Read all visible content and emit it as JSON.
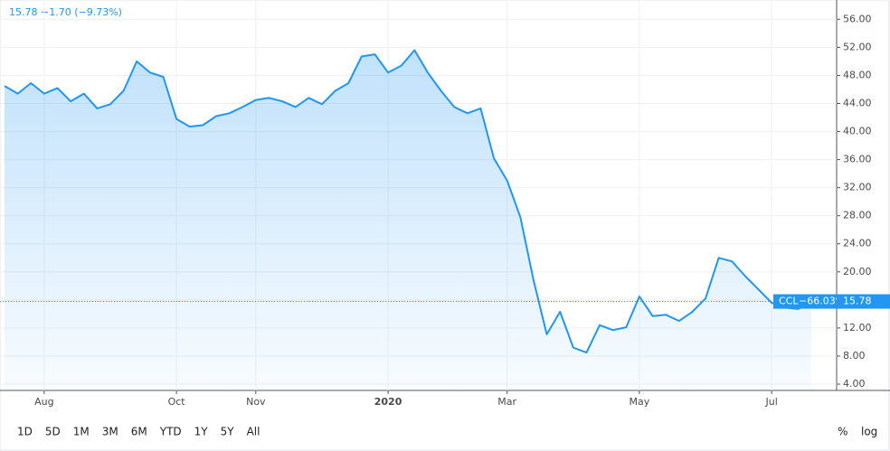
{
  "header": {
    "quote": "15.78 −1.70 (−9.73%)"
  },
  "chart_data": {
    "type": "line",
    "x": [
      null,
      null,
      null,
      "Aug",
      null,
      null,
      null,
      null,
      null,
      null,
      null,
      null,
      null,
      "Oct",
      null,
      null,
      null,
      null,
      null,
      "Nov",
      null,
      null,
      null,
      null,
      null,
      null,
      null,
      null,
      null,
      "2020",
      null,
      null,
      null,
      null,
      null,
      null,
      null,
      null,
      "Mar",
      null,
      null,
      null,
      null,
      null,
      null,
      null,
      null,
      null,
      "May",
      null,
      null,
      null,
      null,
      null,
      null,
      null,
      null,
      null,
      "Jul",
      null,
      null,
      null
    ],
    "series": [
      {
        "name": "CCL",
        "color": "#2196f3",
        "change_label": "−66.03%",
        "values": [
          46.5,
          45.4,
          46.9,
          45.4,
          46.2,
          44.3,
          45.4,
          43.3,
          43.9,
          45.8,
          50.0,
          48.4,
          47.8,
          41.8,
          40.7,
          40.9,
          42.2,
          42.6,
          43.5,
          44.5,
          44.8,
          44.3,
          43.5,
          44.8,
          43.9,
          45.8,
          46.9,
          50.7,
          51.0,
          48.4,
          49.4,
          51.6,
          48.4,
          45.8,
          43.5,
          42.6,
          43.3,
          36.2,
          33.0,
          27.8,
          18.8,
          11.1,
          14.3,
          9.2,
          8.5,
          12.4,
          11.7,
          12.1,
          16.5,
          13.7,
          13.9,
          13.0,
          14.3,
          16.2,
          22.0,
          21.5,
          19.4,
          17.5,
          15.6,
          14.9,
          14.7,
          15.78
        ]
      }
    ],
    "ylim": [
      3.1,
      57.2
    ],
    "yticks": [
      {
        "value": 4,
        "label": "4.00"
      },
      {
        "value": 8,
        "label": "8.00"
      },
      {
        "value": 12,
        "label": "12.00"
      },
      {
        "value": 16,
        "label": "16.00"
      },
      {
        "value": 20,
        "label": "20.00"
      },
      {
        "value": 24,
        "label": "24.00"
      },
      {
        "value": 28,
        "label": "28.00"
      },
      {
        "value": 32,
        "label": "32.00"
      },
      {
        "value": 36,
        "label": "36.00"
      },
      {
        "value": 40,
        "label": "40.00"
      },
      {
        "value": 44,
        "label": "44.00"
      },
      {
        "value": 48,
        "label": "48.00"
      },
      {
        "value": 52,
        "label": "52.00"
      },
      {
        "value": 56,
        "label": "56.00"
      }
    ],
    "grid": true
  },
  "toolbar": {
    "ranges": [
      "1D",
      "5D",
      "1M",
      "3M",
      "6M",
      "YTD",
      "1Y",
      "5Y",
      "All"
    ],
    "options": [
      "%",
      "log"
    ]
  }
}
